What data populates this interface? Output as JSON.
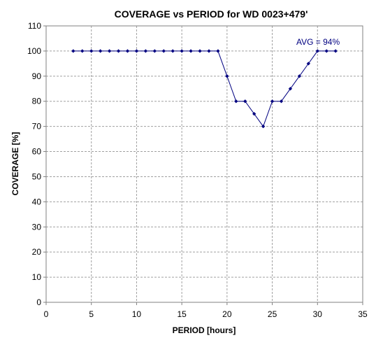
{
  "chart_data": {
    "type": "line",
    "title": "COVERAGE vs PERIOD for WD 0023+479'",
    "xlabel": "PERIOD [hours]",
    "ylabel": "COVERAGE [%]",
    "xlim": [
      0,
      35
    ],
    "ylim": [
      0,
      110
    ],
    "x_ticks": [
      0,
      5,
      10,
      15,
      20,
      25,
      30,
      35
    ],
    "y_ticks": [
      0,
      10,
      20,
      30,
      40,
      50,
      60,
      70,
      80,
      90,
      100,
      110
    ],
    "grid": "dashed",
    "legend": "none",
    "series": [
      {
        "color": "#000080",
        "x": [
          3,
          4,
          5,
          6,
          7,
          8,
          9,
          10,
          11,
          12,
          13,
          14,
          15,
          16,
          17,
          18,
          19,
          20,
          21,
          22,
          23,
          24,
          25,
          26,
          27,
          28,
          29,
          30,
          31,
          32
        ],
        "y": [
          100,
          100,
          100,
          100,
          100,
          100,
          100,
          100,
          100,
          100,
          100,
          100,
          100,
          100,
          100,
          100,
          100,
          90,
          80,
          80,
          75,
          70,
          80,
          80,
          85,
          90,
          95,
          100,
          100,
          100
        ]
      }
    ],
    "annotation": "AVG = 94%"
  }
}
